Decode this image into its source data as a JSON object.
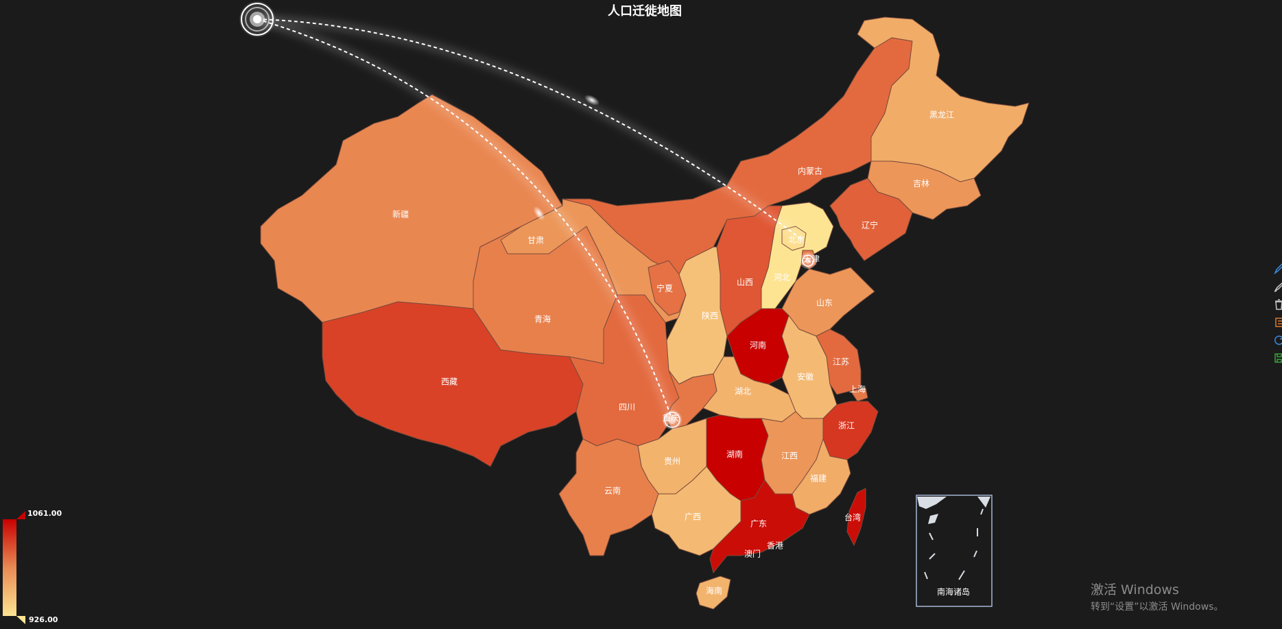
{
  "title": "人口迁徙地图",
  "colors": {
    "background": "#1b1b1b",
    "scale_high": "#c80000",
    "scale_mid": "#e05a3a",
    "scale_low": "#fde492",
    "flow_line": "#ffffff"
  },
  "provinces": [
    {
      "key": "xinjiang",
      "name": "新疆",
      "value": 990
    },
    {
      "key": "xizang",
      "name": "西藏",
      "value": 1030
    },
    {
      "key": "qinghai",
      "name": "青海",
      "value": 995
    },
    {
      "key": "gansu",
      "name": "甘肃",
      "value": 980
    },
    {
      "key": "neimenggu",
      "name": "内蒙古",
      "value": 1010
    },
    {
      "key": "heilongjiang",
      "name": "黑龙江",
      "value": 965
    },
    {
      "key": "jilin",
      "name": "吉林",
      "value": 980
    },
    {
      "key": "liaoning",
      "name": "辽宁",
      "value": 1015
    },
    {
      "key": "beijing",
      "name": "北京",
      "value": 930
    },
    {
      "key": "tianjin",
      "name": "天津",
      "value": 1000
    },
    {
      "key": "hebei",
      "name": "河北",
      "value": 926
    },
    {
      "key": "shanxi",
      "name": "山西",
      "value": 1020
    },
    {
      "key": "shandong",
      "name": "山东",
      "value": 980
    },
    {
      "key": "ningxia",
      "name": "宁夏",
      "value": 1005
    },
    {
      "key": "shaanxi",
      "name": "陕西",
      "value": 950
    },
    {
      "key": "henan",
      "name": "河南",
      "value": 1061
    },
    {
      "key": "sichuan",
      "name": "四川",
      "value": 1010
    },
    {
      "key": "chongqing",
      "name": "重庆",
      "value": 1000
    },
    {
      "key": "hubei",
      "name": "湖北",
      "value": 960
    },
    {
      "key": "anhui",
      "name": "安徽",
      "value": 955
    },
    {
      "key": "jiangsu",
      "name": "江苏",
      "value": 1010
    },
    {
      "key": "shanghai",
      "name": "上海",
      "value": 1000
    },
    {
      "key": "zhejiang",
      "name": "浙江",
      "value": 1035
    },
    {
      "key": "hunan",
      "name": "湖南",
      "value": 1061
    },
    {
      "key": "jiangxi",
      "name": "江西",
      "value": 980
    },
    {
      "key": "fujian",
      "name": "福建",
      "value": 965
    },
    {
      "key": "guizhou",
      "name": "贵州",
      "value": 960
    },
    {
      "key": "yunnan",
      "name": "云南",
      "value": 995
    },
    {
      "key": "guangxi",
      "name": "广西",
      "value": 955
    },
    {
      "key": "guangdong",
      "name": "广东",
      "value": 1055
    },
    {
      "key": "hainan",
      "name": "海南",
      "value": 960
    },
    {
      "key": "taiwan",
      "name": "台湾",
      "value": 1055
    },
    {
      "key": "xianggang",
      "name": "香港",
      "value": null
    },
    {
      "key": "aomen",
      "name": "澳门",
      "value": null
    }
  ],
  "south_sea_label": "南海诸岛",
  "visual_map": {
    "max_label": "1061.00",
    "min_label": "926.00",
    "max": 1061,
    "min": 926
  },
  "flows": [
    {
      "from": "off-map origin",
      "to": "北京"
    },
    {
      "from": "off-map origin",
      "to": "重庆"
    }
  ],
  "toolbox": {
    "icons": [
      "pen-icon",
      "brush-icon",
      "trash-icon",
      "list-icon",
      "refresh-icon",
      "save-icon"
    ],
    "colors": [
      "#3b8de6",
      "#c8c8c8",
      "#c8c8c8",
      "#e0782a",
      "#3b8de6",
      "#3aa13a"
    ]
  },
  "watermark": {
    "title": "激活 Windows",
    "subtitle": "转到“设置”以激活 Windows。"
  }
}
